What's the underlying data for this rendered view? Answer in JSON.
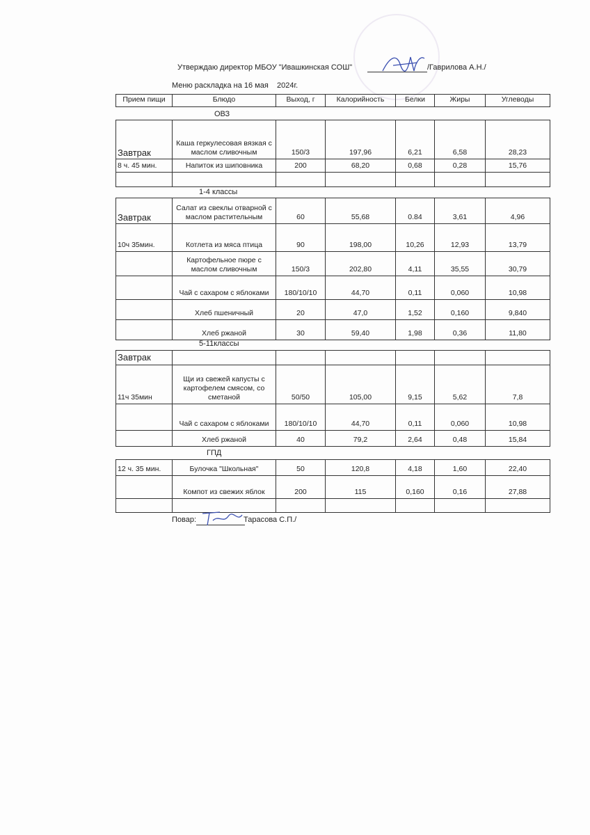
{
  "header": {
    "approval": "Утверждаю директор МБОУ \"Ивашкинская СОШ\"",
    "director": "/Гаврилова А.Н./",
    "menu_title": "Меню раскладка на 16 мая    2024г."
  },
  "columns": [
    "Прием пищи",
    "Блюдо",
    "Выход, г",
    "Калорийность",
    "Белки",
    "Жиры",
    "Углеводы"
  ],
  "sections": [
    {
      "label": "ОВЗ",
      "rows": [
        [
          "Завтрак",
          "Каша геркулесовая вязкая с маслом сливочным",
          "150/3",
          "197,96",
          "6,21",
          "6,58",
          "28,23"
        ],
        [
          "8 ч. 45 мин.",
          "Напиток из шиповника",
          "200",
          "68,20",
          "0,68",
          "0,28",
          "15,76"
        ],
        [
          "",
          "",
          "",
          "",
          "",
          "",
          ""
        ]
      ]
    },
    {
      "label": "1-4 классы",
      "rows": [
        [
          "Завтрак",
          "Салат из свеклы отварной с маслом растительным",
          "60",
          "55,68",
          "0.84",
          "3,61",
          "4,96"
        ],
        [
          "10ч 35мин.",
          "Котлета из мяса птица",
          "90",
          "198,00",
          "10,26",
          "12,93",
          "13,79"
        ],
        [
          "",
          "Картофельное пюре с маслом сливочным",
          "150/3",
          "202,80",
          "4,11",
          "35,55",
          "30,79"
        ],
        [
          "",
          "Чай с сахаром с яблоками",
          "180/10/10",
          "44,70",
          "0,11",
          "0,060",
          "10,98"
        ],
        [
          "",
          "Хлеб пшеничный",
          "20",
          "47,0",
          "1,52",
          "0,160",
          "9,840"
        ],
        [
          "",
          "Хлеб ржаной",
          "30",
          "59,40",
          "1,98",
          "0,36",
          "11,80"
        ]
      ]
    },
    {
      "label": "5-11классы",
      "rows": [
        [
          "Завтрак",
          "",
          "",
          "",
          "",
          "",
          ""
        ],
        [
          "11ч 35мин",
          "Щи из свежей капусты  с картофелем смясом, со сметаной",
          "50/50",
          "105,00",
          "9,15",
          "5,62",
          "7,8"
        ],
        [
          "",
          "Чай с сахаром с яблоками",
          "180/10/10",
          "44,70",
          "0,11",
          "0,060",
          "10,98"
        ],
        [
          "",
          "Хлеб ржаной",
          "40",
          "79,2",
          "2,64",
          "0,48",
          "15,84"
        ]
      ]
    },
    {
      "label": "ГПД",
      "rows": [
        [
          "12 ч. 35 мин.",
          "Булочка \"Школьная\"",
          "50",
          "120,8",
          "4,18",
          "1,60",
          "22,40"
        ],
        [
          "",
          "Компот из свежих яблок",
          "200",
          "115",
          "0,160",
          "0,16",
          "27,88"
        ],
        [
          "",
          "",
          "",
          "",
          "",
          "",
          ""
        ]
      ]
    }
  ],
  "footer": {
    "cook_label": "Повар:",
    "cook_name": "Тарасова С.П./"
  },
  "colors": {
    "signature": "#3a4fb0",
    "stamp": "#b8a8d0"
  }
}
